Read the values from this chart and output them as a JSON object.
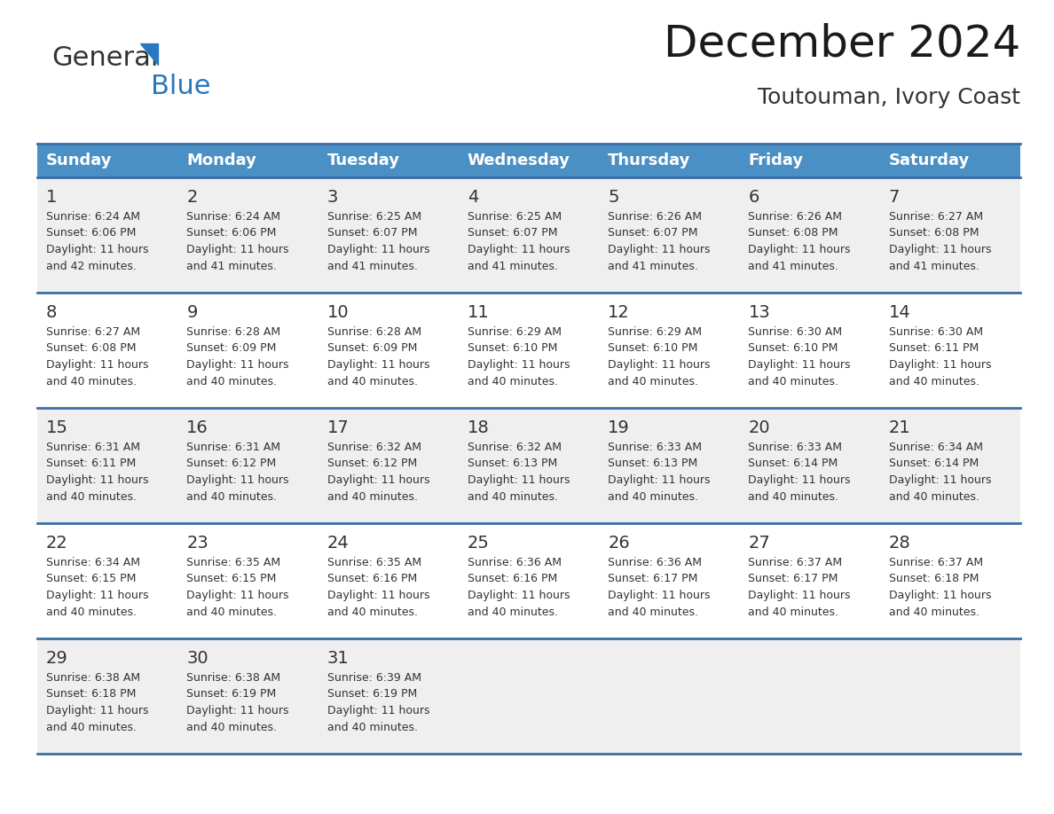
{
  "title": "December 2024",
  "subtitle": "Toutouman, Ivory Coast",
  "header_bg_color": "#4A90C4",
  "header_text_color": "#FFFFFF",
  "row_bg_even": "#EFEFEF",
  "row_bg_odd": "#FFFFFF",
  "cell_text_color": "#333333",
  "day_num_color": "#333333",
  "grid_line_color": "#3A6EA5",
  "days_of_week": [
    "Sunday",
    "Monday",
    "Tuesday",
    "Wednesday",
    "Thursday",
    "Friday",
    "Saturday"
  ],
  "weeks": [
    [
      {
        "day": 1,
        "sunrise": "6:24 AM",
        "sunset": "6:06 PM",
        "daylight": "11 hours and 42 minutes."
      },
      {
        "day": 2,
        "sunrise": "6:24 AM",
        "sunset": "6:06 PM",
        "daylight": "11 hours and 41 minutes."
      },
      {
        "day": 3,
        "sunrise": "6:25 AM",
        "sunset": "6:07 PM",
        "daylight": "11 hours and 41 minutes."
      },
      {
        "day": 4,
        "sunrise": "6:25 AM",
        "sunset": "6:07 PM",
        "daylight": "11 hours and 41 minutes."
      },
      {
        "day": 5,
        "sunrise": "6:26 AM",
        "sunset": "6:07 PM",
        "daylight": "11 hours and 41 minutes."
      },
      {
        "day": 6,
        "sunrise": "6:26 AM",
        "sunset": "6:08 PM",
        "daylight": "11 hours and 41 minutes."
      },
      {
        "day": 7,
        "sunrise": "6:27 AM",
        "sunset": "6:08 PM",
        "daylight": "11 hours and 41 minutes."
      }
    ],
    [
      {
        "day": 8,
        "sunrise": "6:27 AM",
        "sunset": "6:08 PM",
        "daylight": "11 hours and 40 minutes."
      },
      {
        "day": 9,
        "sunrise": "6:28 AM",
        "sunset": "6:09 PM",
        "daylight": "11 hours and 40 minutes."
      },
      {
        "day": 10,
        "sunrise": "6:28 AM",
        "sunset": "6:09 PM",
        "daylight": "11 hours and 40 minutes."
      },
      {
        "day": 11,
        "sunrise": "6:29 AM",
        "sunset": "6:10 PM",
        "daylight": "11 hours and 40 minutes."
      },
      {
        "day": 12,
        "sunrise": "6:29 AM",
        "sunset": "6:10 PM",
        "daylight": "11 hours and 40 minutes."
      },
      {
        "day": 13,
        "sunrise": "6:30 AM",
        "sunset": "6:10 PM",
        "daylight": "11 hours and 40 minutes."
      },
      {
        "day": 14,
        "sunrise": "6:30 AM",
        "sunset": "6:11 PM",
        "daylight": "11 hours and 40 minutes."
      }
    ],
    [
      {
        "day": 15,
        "sunrise": "6:31 AM",
        "sunset": "6:11 PM",
        "daylight": "11 hours and 40 minutes."
      },
      {
        "day": 16,
        "sunrise": "6:31 AM",
        "sunset": "6:12 PM",
        "daylight": "11 hours and 40 minutes."
      },
      {
        "day": 17,
        "sunrise": "6:32 AM",
        "sunset": "6:12 PM",
        "daylight": "11 hours and 40 minutes."
      },
      {
        "day": 18,
        "sunrise": "6:32 AM",
        "sunset": "6:13 PM",
        "daylight": "11 hours and 40 minutes."
      },
      {
        "day": 19,
        "sunrise": "6:33 AM",
        "sunset": "6:13 PM",
        "daylight": "11 hours and 40 minutes."
      },
      {
        "day": 20,
        "sunrise": "6:33 AM",
        "sunset": "6:14 PM",
        "daylight": "11 hours and 40 minutes."
      },
      {
        "day": 21,
        "sunrise": "6:34 AM",
        "sunset": "6:14 PM",
        "daylight": "11 hours and 40 minutes."
      }
    ],
    [
      {
        "day": 22,
        "sunrise": "6:34 AM",
        "sunset": "6:15 PM",
        "daylight": "11 hours and 40 minutes."
      },
      {
        "day": 23,
        "sunrise": "6:35 AM",
        "sunset": "6:15 PM",
        "daylight": "11 hours and 40 minutes."
      },
      {
        "day": 24,
        "sunrise": "6:35 AM",
        "sunset": "6:16 PM",
        "daylight": "11 hours and 40 minutes."
      },
      {
        "day": 25,
        "sunrise": "6:36 AM",
        "sunset": "6:16 PM",
        "daylight": "11 hours and 40 minutes."
      },
      {
        "day": 26,
        "sunrise": "6:36 AM",
        "sunset": "6:17 PM",
        "daylight": "11 hours and 40 minutes."
      },
      {
        "day": 27,
        "sunrise": "6:37 AM",
        "sunset": "6:17 PM",
        "daylight": "11 hours and 40 minutes."
      },
      {
        "day": 28,
        "sunrise": "6:37 AM",
        "sunset": "6:18 PM",
        "daylight": "11 hours and 40 minutes."
      }
    ],
    [
      {
        "day": 29,
        "sunrise": "6:38 AM",
        "sunset": "6:18 PM",
        "daylight": "11 hours and 40 minutes."
      },
      {
        "day": 30,
        "sunrise": "6:38 AM",
        "sunset": "6:19 PM",
        "daylight": "11 hours and 40 minutes."
      },
      {
        "day": 31,
        "sunrise": "6:39 AM",
        "sunset": "6:19 PM",
        "daylight": "11 hours and 40 minutes."
      },
      null,
      null,
      null,
      null
    ]
  ],
  "logo_text1_color": "#333333",
  "logo_text2_color": "#2878C0",
  "logo_triangle_color": "#2878C0",
  "title_fontsize": 36,
  "subtitle_fontsize": 18,
  "header_fontsize": 13,
  "day_num_fontsize": 14,
  "cell_fontsize": 9
}
